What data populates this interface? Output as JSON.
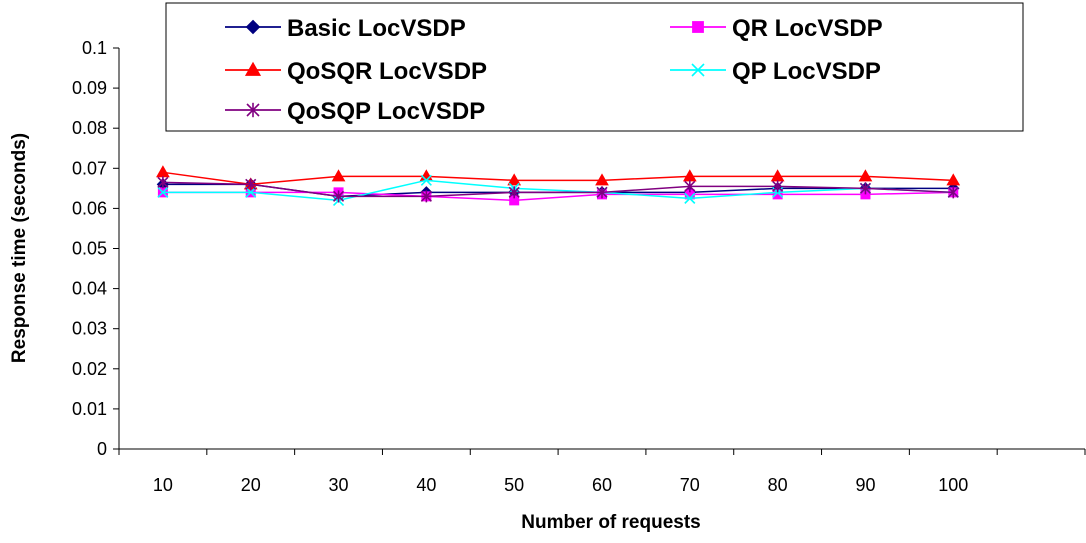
{
  "chart_data": {
    "type": "line",
    "title": "",
    "xlabel": "Number of requests",
    "ylabel": "Response time (seconds)",
    "categories": [
      "10",
      "20",
      "30",
      "40",
      "50",
      "60",
      "70",
      "80",
      "90",
      "100"
    ],
    "ylim": [
      0,
      0.1
    ],
    "yticks": [
      "0",
      "0.01",
      "0.02",
      "0.03",
      "0.04",
      "0.05",
      "0.06",
      "0.07",
      "0.08",
      "0.09",
      "0.1"
    ],
    "grid": false,
    "legend_position": "top",
    "series": [
      {
        "name": "Basic LocVSDP",
        "color": "#000080",
        "marker": "diamond",
        "values": [
          0.066,
          0.066,
          0.063,
          0.064,
          0.064,
          0.064,
          0.064,
          0.065,
          0.065,
          0.065
        ]
      },
      {
        "name": "QR LocVSDP",
        "color": "#ff00ff",
        "marker": "square",
        "values": [
          0.064,
          0.064,
          0.064,
          0.063,
          0.062,
          0.0635,
          0.0635,
          0.0635,
          0.0635,
          0.064
        ]
      },
      {
        "name": "QoSQR LocVSDP",
        "color": "#ff0000",
        "marker": "triangle",
        "values": [
          0.069,
          0.066,
          0.068,
          0.068,
          0.067,
          0.067,
          0.068,
          0.068,
          0.068,
          0.067
        ]
      },
      {
        "name": "QP LocVSDP",
        "color": "#00ffff",
        "marker": "x",
        "values": [
          0.064,
          0.064,
          0.062,
          0.067,
          0.065,
          0.064,
          0.0625,
          0.064,
          0.065,
          0.064
        ]
      },
      {
        "name": "QoSQP LocVSDP",
        "color": "#800080",
        "marker": "star",
        "values": [
          0.0665,
          0.066,
          0.063,
          0.063,
          0.064,
          0.064,
          0.0655,
          0.0655,
          0.065,
          0.064
        ]
      }
    ]
  }
}
